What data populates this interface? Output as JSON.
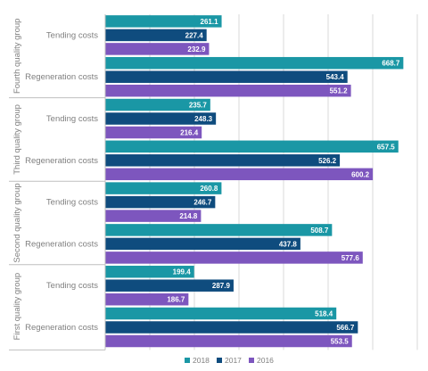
{
  "chart_data": {
    "type": "bar",
    "orientation": "horizontal",
    "grid": true,
    "legend_position": "bottom",
    "xlim": [
      0,
      700
    ],
    "groups": [
      {
        "name": "Fourth quality group",
        "categories": [
          {
            "name": "Tending costs",
            "values": {
              "2018": 261.1,
              "2017": 227.4,
              "2016": 232.9
            }
          },
          {
            "name": "Regeneration costs",
            "values": {
              "2018": 668.7,
              "2017": 543.4,
              "2016": 551.2
            }
          }
        ]
      },
      {
        "name": "Third quality group",
        "categories": [
          {
            "name": "Tending costs",
            "values": {
              "2018": 235.7,
              "2017": 248.3,
              "2016": 216.4
            }
          },
          {
            "name": "Regeneration costs",
            "values": {
              "2018": 657.5,
              "2017": 526.2,
              "2016": 600.2
            }
          }
        ]
      },
      {
        "name": "Second quality group",
        "categories": [
          {
            "name": "Tending costs",
            "values": {
              "2018": 260.8,
              "2017": 246.7,
              "2016": 214.8
            }
          },
          {
            "name": "Regeneration costs",
            "values": {
              "2018": 508.7,
              "2017": 437.8,
              "2016": 577.6
            }
          }
        ]
      },
      {
        "name": "First quality group",
        "categories": [
          {
            "name": "Tending costs",
            "values": {
              "2018": 199.4,
              "2017": 287.9,
              "2016": 186.7
            }
          },
          {
            "name": "Regeneration costs",
            "values": {
              "2018": 518.4,
              "2017": 566.7,
              "2016": 553.5
            }
          }
        ]
      }
    ],
    "series": [
      {
        "name": "2018",
        "color": "#1a97a5"
      },
      {
        "name": "2017",
        "color": "#0f4c7e"
      },
      {
        "name": "2016",
        "color": "#7d56be"
      }
    ]
  }
}
